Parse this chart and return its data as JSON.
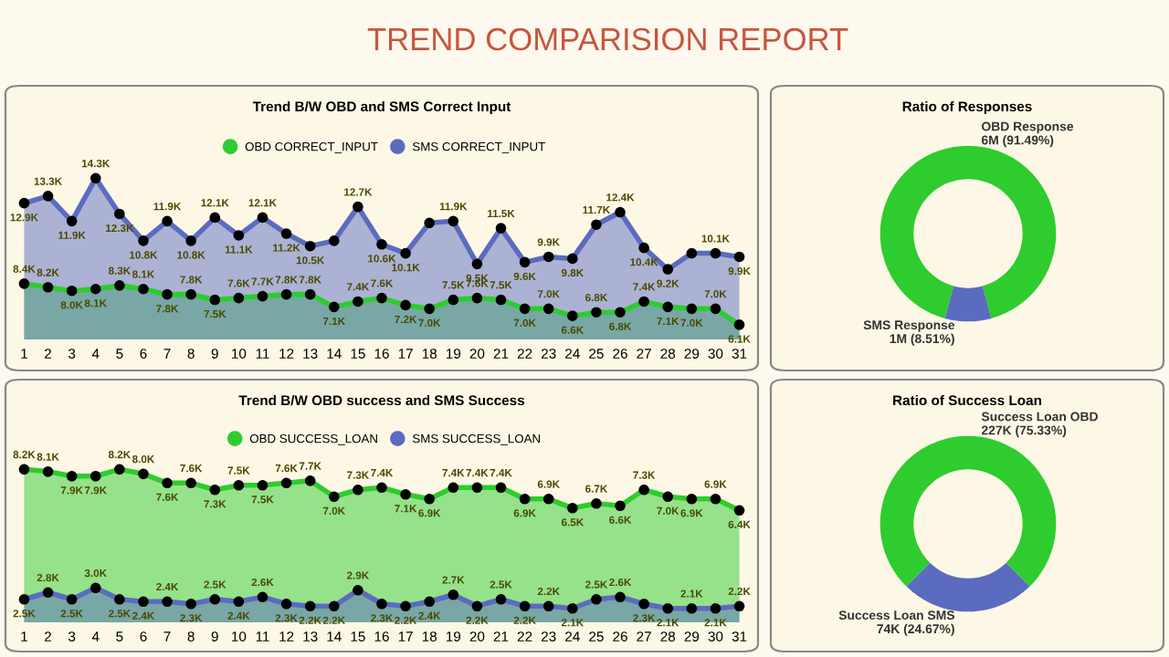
{
  "chart_data": [
    {
      "type": "other",
      "title": "TREND COMPARISION REPORT"
    },
    {
      "type": "area",
      "title": "Trend B/W OBD and SMS Correct Input",
      "categories": [
        "1",
        "2",
        "3",
        "4",
        "5",
        "6",
        "7",
        "8",
        "9",
        "10",
        "11",
        "12",
        "13",
        "14",
        "15",
        "16",
        "17",
        "18",
        "19",
        "20",
        "21",
        "22",
        "23",
        "24",
        "25",
        "26",
        "27",
        "28",
        "29",
        "30",
        "31"
      ],
      "tick_labels": "x",
      "grid": false,
      "legend": "top",
      "marker": "circle",
      "line_style": "solid",
      "series": [
        {
          "name": "OBD CORRECT_INPUT",
          "color": "#2ecc2e",
          "values": [
            8400,
            8200,
            8000,
            8100,
            8300,
            8100,
            7800,
            7800,
            7500,
            7600,
            7700,
            7800,
            7800,
            7100,
            7400,
            7600,
            7200,
            7000,
            7500,
            7600,
            7500,
            7000,
            7000,
            6600,
            6800,
            6800,
            7400,
            7100,
            7000,
            7000,
            6100
          ],
          "value_labels": [
            "8.4K",
            "8.2K",
            "8.0K",
            "8.1K",
            "8.3K",
            "8.1K",
            "7.8K",
            "7.8K",
            "7.5K",
            "7.6K",
            "7.7K",
            "7.8K",
            "7.8K",
            "7.1K",
            "7.4K",
            "7.6K",
            "7.2K",
            "7.0K",
            "7.5K",
            "7.6K",
            "7.5K",
            "7.0K",
            "7.0K",
            "6.6K",
            "6.8K",
            "6.8K",
            "7.4K",
            "7.1K",
            "7.0K",
            "7.0K",
            "6.1K"
          ]
        },
        {
          "name": "SMS CORRECT_INPUT",
          "color": "#5b6bbf",
          "values": [
            12900,
            13300,
            11900,
            14300,
            12300,
            10800,
            11900,
            10800,
            12100,
            11100,
            12100,
            11200,
            10500,
            10800,
            12700,
            10600,
            10100,
            11800,
            11900,
            9500,
            11500,
            9600,
            9900,
            9800,
            11700,
            12400,
            10400,
            9200,
            10100,
            10100,
            9900
          ],
          "value_labels": [
            "12.9K",
            "13.3K",
            "11.9K",
            "14.3K",
            "12.3K",
            "10.8K",
            "11.9K",
            "10.8K",
            "12.1K",
            "11.1K",
            "12.1K",
            "11.2K",
            "10.5K",
            null,
            "12.7K",
            "10.6K",
            "10.1K",
            null,
            "11.9K",
            "9.5K",
            "11.5K",
            "9.6K",
            "9.9K",
            "9.8K",
            "11.7K",
            "12.4K",
            "10.4K",
            "9.2K",
            null,
            "10.1K",
            "9.9K"
          ]
        }
      ]
    },
    {
      "type": "donut",
      "title": "Ratio of Responses",
      "categories": [
        "OBD Response",
        "SMS Response"
      ],
      "values": [
        91.49,
        8.51
      ],
      "colors": [
        "#2ecc2e",
        "#5b6bbf"
      ],
      "value_labels": [
        "6M (91.49%)",
        "1M (8.51%)"
      ]
    },
    {
      "type": "area",
      "title": "Trend B/W OBD success and SMS Success",
      "categories": [
        "1",
        "2",
        "3",
        "4",
        "5",
        "6",
        "7",
        "8",
        "9",
        "10",
        "11",
        "12",
        "13",
        "14",
        "15",
        "16",
        "17",
        "18",
        "19",
        "20",
        "21",
        "22",
        "23",
        "24",
        "25",
        "26",
        "27",
        "28",
        "29",
        "30",
        "31"
      ],
      "tick_labels": "x",
      "grid": false,
      "legend": "top",
      "marker": "circle",
      "line_style": "solid",
      "series": [
        {
          "name": "OBD SUCCESS_LOAN",
          "color": "#2ecc2e",
          "values": [
            8200,
            8100,
            7900,
            7900,
            8200,
            8000,
            7600,
            7600,
            7300,
            7500,
            7500,
            7600,
            7700,
            7000,
            7300,
            7400,
            7100,
            6900,
            7400,
            7400,
            7400,
            6900,
            6900,
            6500,
            6700,
            6600,
            7300,
            7000,
            6900,
            6900,
            6400
          ],
          "value_labels": [
            "8.2K",
            "8.1K",
            "7.9K",
            "7.9K",
            "8.2K",
            "8.0K",
            "7.6K",
            "7.6K",
            "7.3K",
            "7.5K",
            "7.5K",
            "7.6K",
            "7.7K",
            "7.0K",
            "7.3K",
            "7.4K",
            "7.1K",
            "6.9K",
            "7.4K",
            "7.4K",
            "7.4K",
            "6.9K",
            "6.9K",
            "6.5K",
            "6.7K",
            "6.6K",
            "7.3K",
            "7.0K",
            "6.9K",
            "6.9K",
            "6.4K"
          ]
        },
        {
          "name": "SMS SUCCESS_LOAN",
          "color": "#5b6bbf",
          "values": [
            2500,
            2800,
            2500,
            3000,
            2500,
            2400,
            2400,
            2300,
            2500,
            2400,
            2600,
            2300,
            2200,
            2200,
            2900,
            2300,
            2200,
            2400,
            2700,
            2200,
            2500,
            2200,
            2200,
            2100,
            2500,
            2600,
            2300,
            2100,
            2100,
            2100,
            2200
          ],
          "value_labels": [
            "2.5K",
            "2.8K",
            "2.5K",
            "3.0K",
            "2.5K",
            "2.4K",
            "2.4K",
            "2.3K",
            "2.5K",
            "2.4K",
            "2.6K",
            "2.3K",
            "2.2K",
            "2.2K",
            "2.9K",
            "2.3K",
            "2.2K",
            "2.4K",
            "2.7K",
            "2.2K",
            "2.5K",
            "2.2K",
            "2.2K",
            "2.1K",
            "2.5K",
            "2.6K",
            "2.3K",
            "2.1K",
            "2.1K",
            "2.1K",
            "2.2K"
          ]
        }
      ]
    },
    {
      "type": "donut",
      "title": "Ratio of Success Loan",
      "categories": [
        "Success Loan OBD",
        "Success Loan SMS"
      ],
      "values": [
        75.33,
        24.67
      ],
      "colors": [
        "#2ecc2e",
        "#5b6bbf"
      ],
      "value_labels": [
        "227K (75.33%)",
        "74K (24.67%)"
      ]
    }
  ]
}
